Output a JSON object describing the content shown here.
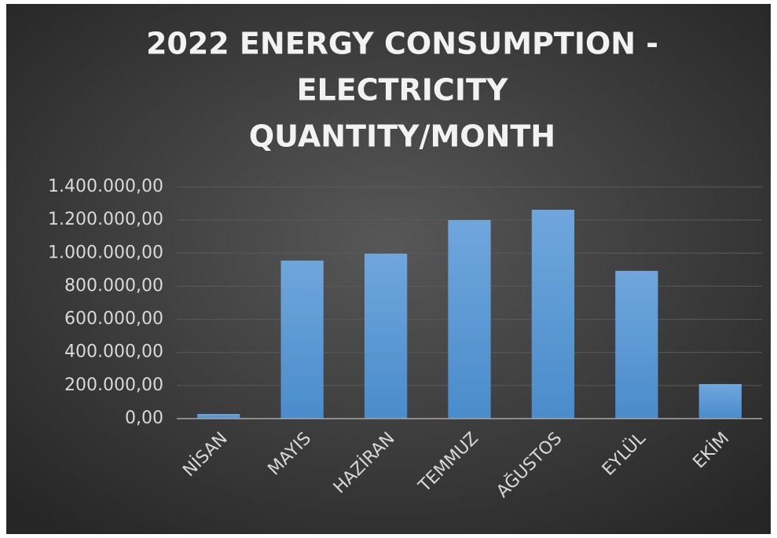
{
  "chart_data": {
    "type": "bar",
    "title": [
      "2022 ENERGY CONSUMPTION -",
      "ELECTRICITY",
      "QUANTITY/MONTH"
    ],
    "categories": [
      "NİSAN",
      "MAYIS",
      "HAZİRAN",
      "TEMMUZ",
      "AĞUSTOS",
      "EYLÜL",
      "EKİM"
    ],
    "values": [
      28000,
      955000,
      997000,
      1200000,
      1262000,
      893000,
      209000
    ],
    "color": "#5b9bd5",
    "ylim": [
      0,
      1400000
    ],
    "yticks": [
      {
        "value": 0,
        "label": "0,00"
      },
      {
        "value": 200000,
        "label": "200.000,00"
      },
      {
        "value": 400000,
        "label": "400.000,00"
      },
      {
        "value": 600000,
        "label": "600.000,00"
      },
      {
        "value": 800000,
        "label": "800.000,00"
      },
      {
        "value": 1000000,
        "label": "1.000.000,00"
      },
      {
        "value": 1200000,
        "label": "1.200.000,00"
      },
      {
        "value": 1400000,
        "label": "1.400.000,00"
      }
    ],
    "grid": true
  }
}
